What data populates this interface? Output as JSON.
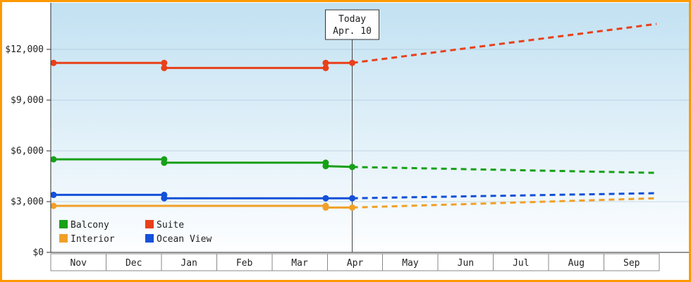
{
  "chart_data": {
    "type": "line",
    "title": "",
    "x_labels": [
      "Nov",
      "Dec",
      "Jan",
      "Feb",
      "Mar",
      "Apr",
      "May",
      "Jun",
      "Jul",
      "Aug",
      "Sep"
    ],
    "y_ticks": [
      {
        "value": 0,
        "label": "$0"
      },
      {
        "value": 3000,
        "label": "$3,000"
      },
      {
        "value": 6000,
        "label": "$6,000"
      },
      {
        "value": 9000,
        "label": "$9,000"
      },
      {
        "value": 12000,
        "label": "$12,000"
      }
    ],
    "ylim": [
      0,
      14750
    ],
    "grid": true,
    "legend_position": "bottom-left",
    "today_marker": {
      "line1": "Today",
      "line2": "Apr. 10",
      "month_position": 5.45
    },
    "series": [
      {
        "name": "Interior",
        "color": "#f0a028",
        "solid": [
          [
            0.05,
            2750
          ],
          [
            4.97,
            2750
          ],
          [
            4.97,
            2650
          ],
          [
            5.45,
            2650
          ]
        ],
        "dashed": [
          [
            5.45,
            2650
          ],
          [
            10.95,
            3200
          ]
        ]
      },
      {
        "name": "Ocean View",
        "color": "#1450d8",
        "solid": [
          [
            0.05,
            3400
          ],
          [
            2.05,
            3400
          ],
          [
            2.05,
            3200
          ],
          [
            4.97,
            3200
          ],
          [
            5.45,
            3200
          ]
        ],
        "dashed": [
          [
            5.45,
            3200
          ],
          [
            10.95,
            3500
          ]
        ]
      },
      {
        "name": "Balcony",
        "color": "#18a018",
        "solid": [
          [
            0.05,
            5500
          ],
          [
            2.05,
            5500
          ],
          [
            2.05,
            5300
          ],
          [
            4.97,
            5300
          ],
          [
            4.97,
            5100
          ],
          [
            5.45,
            5050
          ]
        ],
        "dashed": [
          [
            5.45,
            5050
          ],
          [
            10.95,
            4700
          ]
        ]
      },
      {
        "name": "Suite",
        "color": "#e8401a",
        "solid": [
          [
            0.05,
            11200
          ],
          [
            2.05,
            11200
          ],
          [
            2.05,
            10900
          ],
          [
            4.97,
            10900
          ],
          [
            4.97,
            11200
          ],
          [
            5.45,
            11200
          ]
        ],
        "dashed": [
          [
            5.45,
            11200
          ],
          [
            10.95,
            13500
          ]
        ]
      }
    ],
    "legend": [
      {
        "label": "Balcony",
        "color": "#18a018"
      },
      {
        "label": "Suite",
        "color": "#e8401a"
      },
      {
        "label": "Interior",
        "color": "#f0a028"
      },
      {
        "label": "Ocean View",
        "color": "#1450d8"
      }
    ]
  },
  "colors": {
    "frame": "#ff9900",
    "plot_top": "#c2e1f2",
    "plot_bottom": "#fdfeff",
    "axis": "#2b2b2b",
    "grid": "#86a8bd",
    "month_box_border": "#888888",
    "today_line": "#444444",
    "today_box_border": "#333333",
    "text": "#222222"
  }
}
